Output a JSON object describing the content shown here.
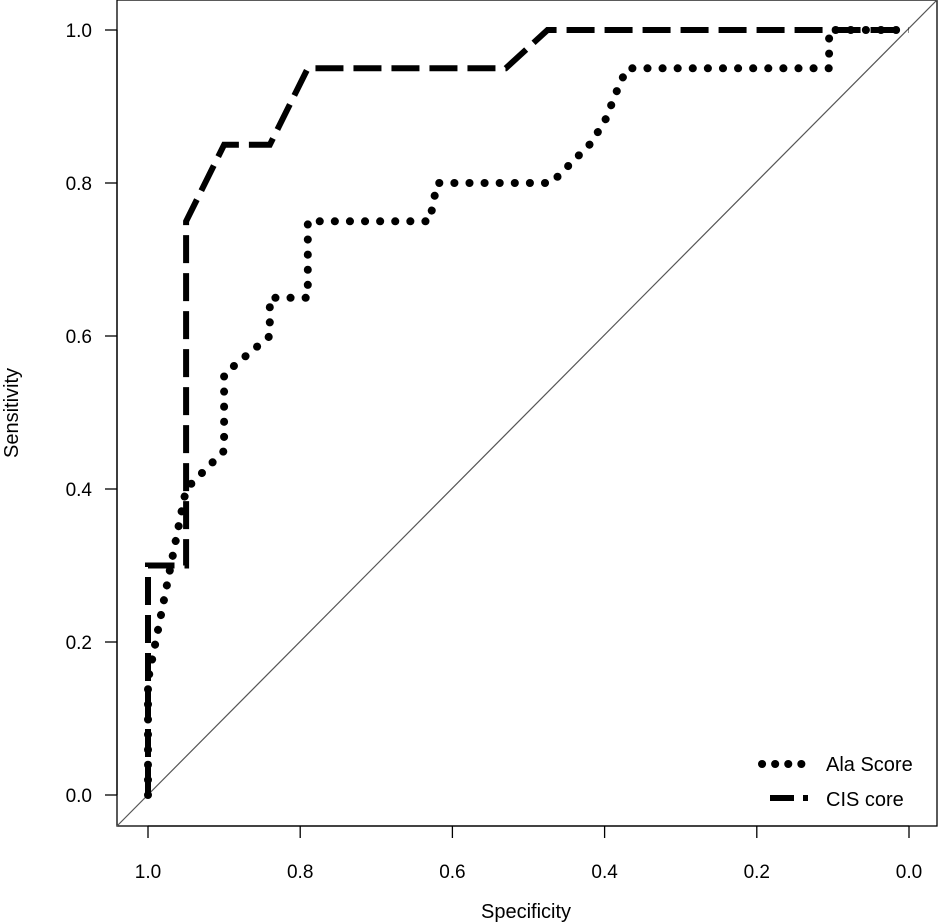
{
  "chart_data": {
    "type": "line",
    "title": "",
    "xlabel": "Specificity",
    "ylabel": "Sensitivity",
    "x_reversed": true,
    "xlim": [
      1.0,
      0.0
    ],
    "ylim": [
      0.0,
      1.0
    ],
    "x_ticks": [
      "1.0",
      "0.8",
      "0.6",
      "0.4",
      "0.2",
      "0.0"
    ],
    "y_ticks": [
      "0.0",
      "0.2",
      "0.4",
      "0.6",
      "0.8",
      "1.0"
    ],
    "grid": false,
    "legend_position": "bottom-right",
    "reference_line": {
      "from": [
        1.0,
        0.0
      ],
      "to": [
        0.0,
        1.0
      ],
      "color": "#555555"
    },
    "series": [
      {
        "name": "Ala Score",
        "style": "dotted",
        "color": "#000000",
        "points": [
          [
            1.0,
            0.0
          ],
          [
            1.0,
            0.15
          ],
          [
            0.99,
            0.2
          ],
          [
            0.98,
            0.25
          ],
          [
            0.97,
            0.3
          ],
          [
            0.96,
            0.35
          ],
          [
            0.95,
            0.4
          ],
          [
            0.93,
            0.42
          ],
          [
            0.9,
            0.45
          ],
          [
            0.9,
            0.55
          ],
          [
            0.87,
            0.575
          ],
          [
            0.84,
            0.6
          ],
          [
            0.84,
            0.65
          ],
          [
            0.79,
            0.65
          ],
          [
            0.79,
            0.75
          ],
          [
            0.63,
            0.75
          ],
          [
            0.62,
            0.8
          ],
          [
            0.47,
            0.8
          ],
          [
            0.45,
            0.82
          ],
          [
            0.42,
            0.85
          ],
          [
            0.4,
            0.88
          ],
          [
            0.38,
            0.93
          ],
          [
            0.37,
            0.95
          ],
          [
            0.105,
            0.95
          ],
          [
            0.105,
            1.0
          ],
          [
            0.0,
            1.0
          ]
        ]
      },
      {
        "name": "CIS core",
        "style": "dashed",
        "color": "#000000",
        "points": [
          [
            1.0,
            0.0
          ],
          [
            1.0,
            0.3
          ],
          [
            0.95,
            0.3
          ],
          [
            0.95,
            0.75
          ],
          [
            0.9,
            0.85
          ],
          [
            0.84,
            0.85
          ],
          [
            0.79,
            0.95
          ],
          [
            0.53,
            0.95
          ],
          [
            0.475,
            1.0
          ],
          [
            0.0,
            1.0
          ]
        ]
      }
    ]
  }
}
